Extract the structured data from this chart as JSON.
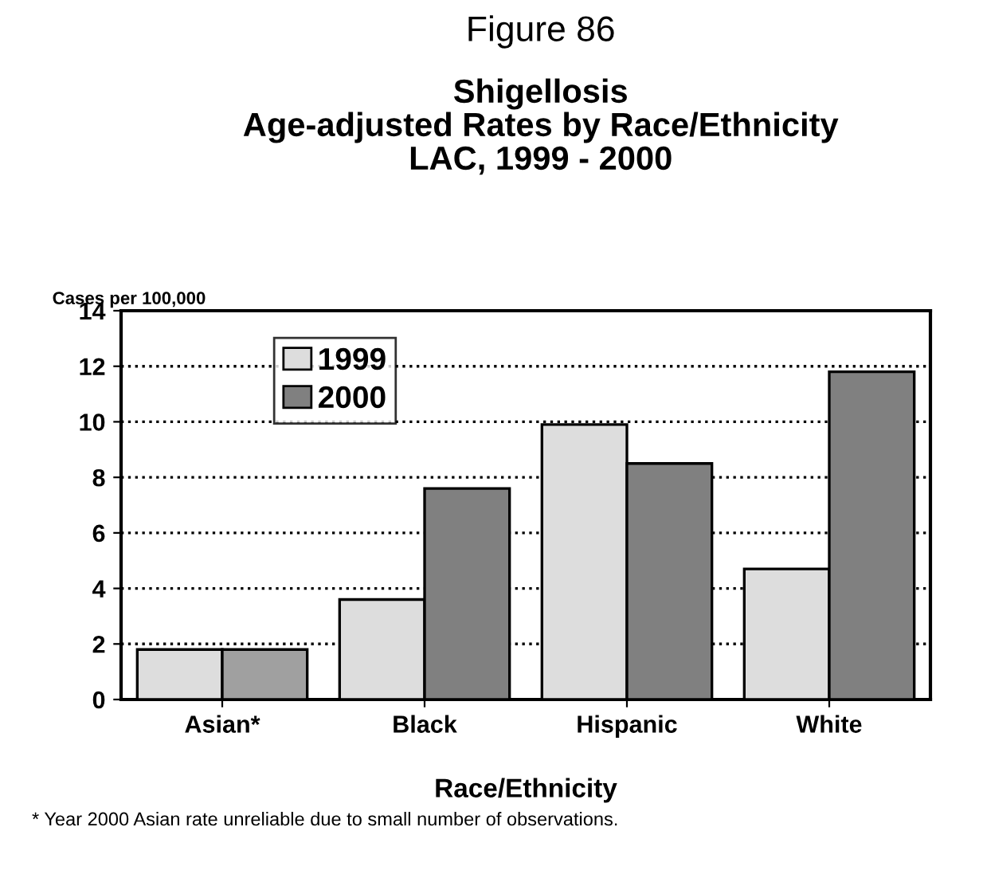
{
  "chart_data": {
    "type": "bar",
    "title": "Figure 86",
    "subtitle": "Shigellosis\nAge-adjusted Rates by Race/Ethnicity\nLAC, 1999 - 2000",
    "ylabel": "Cases per 100,000",
    "xlabel": "Race/Ethnicity",
    "categories": [
      "Asian*",
      "Black",
      "Hispanic",
      "White"
    ],
    "series": [
      {
        "name": "1999",
        "color": "#dddddd",
        "values": [
          1.8,
          3.6,
          9.9,
          4.7
        ]
      },
      {
        "name": "2000",
        "color": "#808080",
        "colors": [
          "#a0a0a0",
          "#808080",
          "#808080",
          "#808080"
        ],
        "values": [
          1.8,
          7.6,
          8.5,
          11.8
        ]
      }
    ],
    "ylim": [
      0,
      14
    ],
    "yticks": [
      0,
      2,
      4,
      6,
      8,
      10,
      12,
      14
    ],
    "grid": "y",
    "legend": "top left",
    "annotations": [
      "* Year 2000 Asian rate unreliable due to small number of observations."
    ]
  }
}
